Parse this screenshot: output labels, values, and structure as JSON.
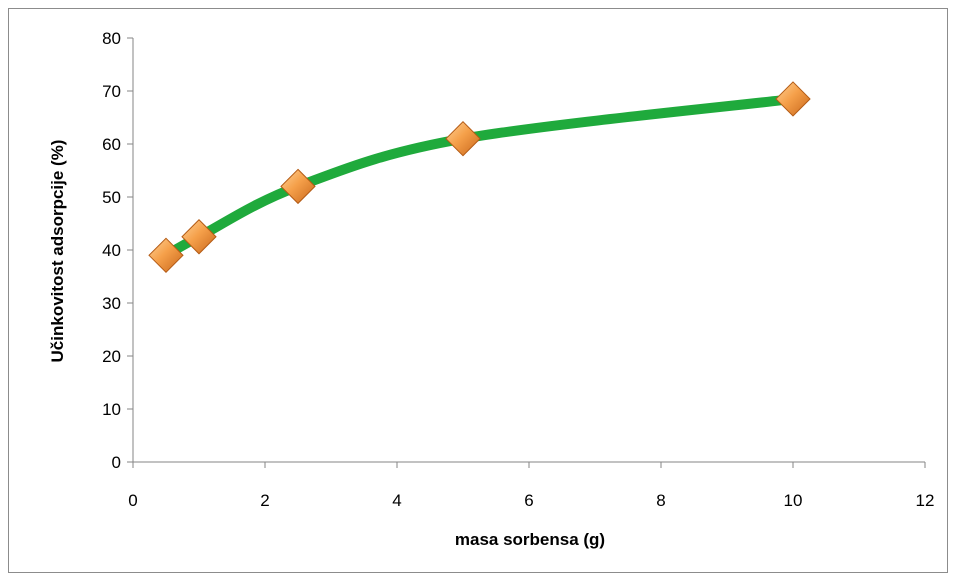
{
  "chart_data": {
    "type": "scatter",
    "title": "",
    "xlabel": "masa sorbensa (g)",
    "ylabel": "Učinkovitost adsorpcije (%)",
    "xlim": [
      0,
      12
    ],
    "ylim": [
      0,
      80
    ],
    "x_ticks": [
      0,
      2,
      4,
      6,
      8,
      10,
      12
    ],
    "y_ticks": [
      0,
      10,
      20,
      30,
      40,
      50,
      60,
      70,
      80
    ],
    "grid": false,
    "legend": "none",
    "series": [
      {
        "x": [
          0.5,
          1,
          2.5,
          5,
          10
        ],
        "y": [
          39,
          42.5,
          52,
          61,
          68.5
        ],
        "marker": "diamond",
        "marker_color": "#f08c28",
        "line_style": "smooth",
        "line_color": "#1faa3c"
      }
    ]
  }
}
